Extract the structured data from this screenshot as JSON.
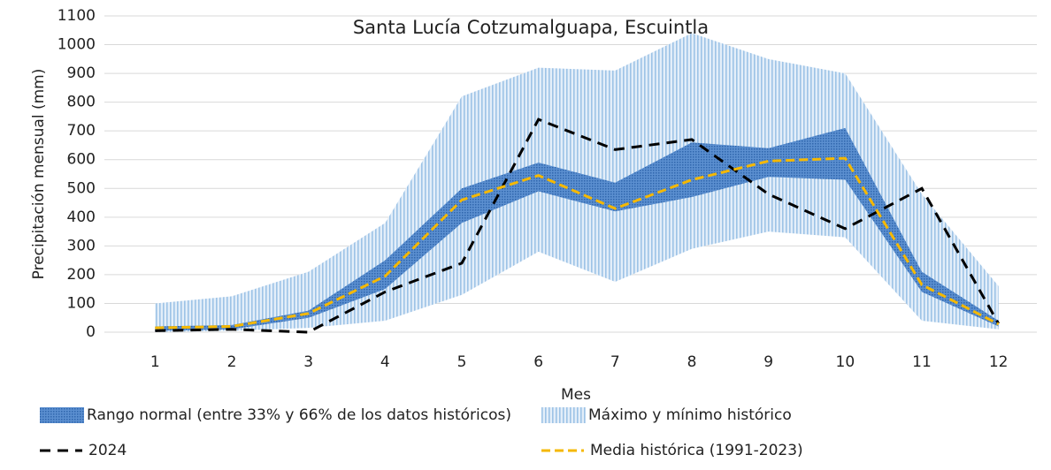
{
  "chart_data": {
    "type": "band-line",
    "title": "Santa Lucía Cotzumalguapa, Escuintla",
    "x_label": "Mes",
    "y_label": "Precipitación mensual (mm)",
    "x": [
      1,
      2,
      3,
      4,
      5,
      6,
      7,
      8,
      9,
      10,
      11,
      12
    ],
    "xlim": [
      0.5,
      12.5
    ],
    "xticks": [
      1,
      2,
      3,
      4,
      5,
      6,
      7,
      8,
      9,
      10,
      11,
      12
    ],
    "ylim": [
      0,
      1100
    ],
    "yticks": [
      0,
      100,
      200,
      300,
      400,
      500,
      600,
      700,
      800,
      900,
      1000,
      1100
    ],
    "grid": true,
    "series": [
      {
        "name": "Rango normal (entre 33% y 66% de los datos históricos)",
        "color": "#3f78c0",
        "low": [
          5,
          10,
          50,
          150,
          380,
          490,
          420,
          470,
          540,
          530,
          140,
          20
        ],
        "high": [
          20,
          25,
          75,
          250,
          500,
          590,
          520,
          660,
          640,
          710,
          210,
          40
        ]
      },
      {
        "name": "Máximo y mínimo histórico",
        "color": "#9dc3e6",
        "low": [
          0,
          5,
          15,
          40,
          130,
          280,
          175,
          290,
          350,
          330,
          40,
          10
        ],
        "high": [
          100,
          125,
          210,
          380,
          820,
          920,
          910,
          1040,
          950,
          900,
          480,
          160
        ]
      },
      {
        "name": "2024",
        "color": "#000000",
        "values": [
          5,
          10,
          0,
          140,
          240,
          740,
          635,
          670,
          480,
          360,
          500,
          30
        ]
      },
      {
        "name": "Media histórica (1991-2023)",
        "color": "#f5b800",
        "values": [
          15,
          20,
          65,
          195,
          460,
          545,
          430,
          530,
          595,
          605,
          165,
          28
        ]
      }
    ]
  }
}
